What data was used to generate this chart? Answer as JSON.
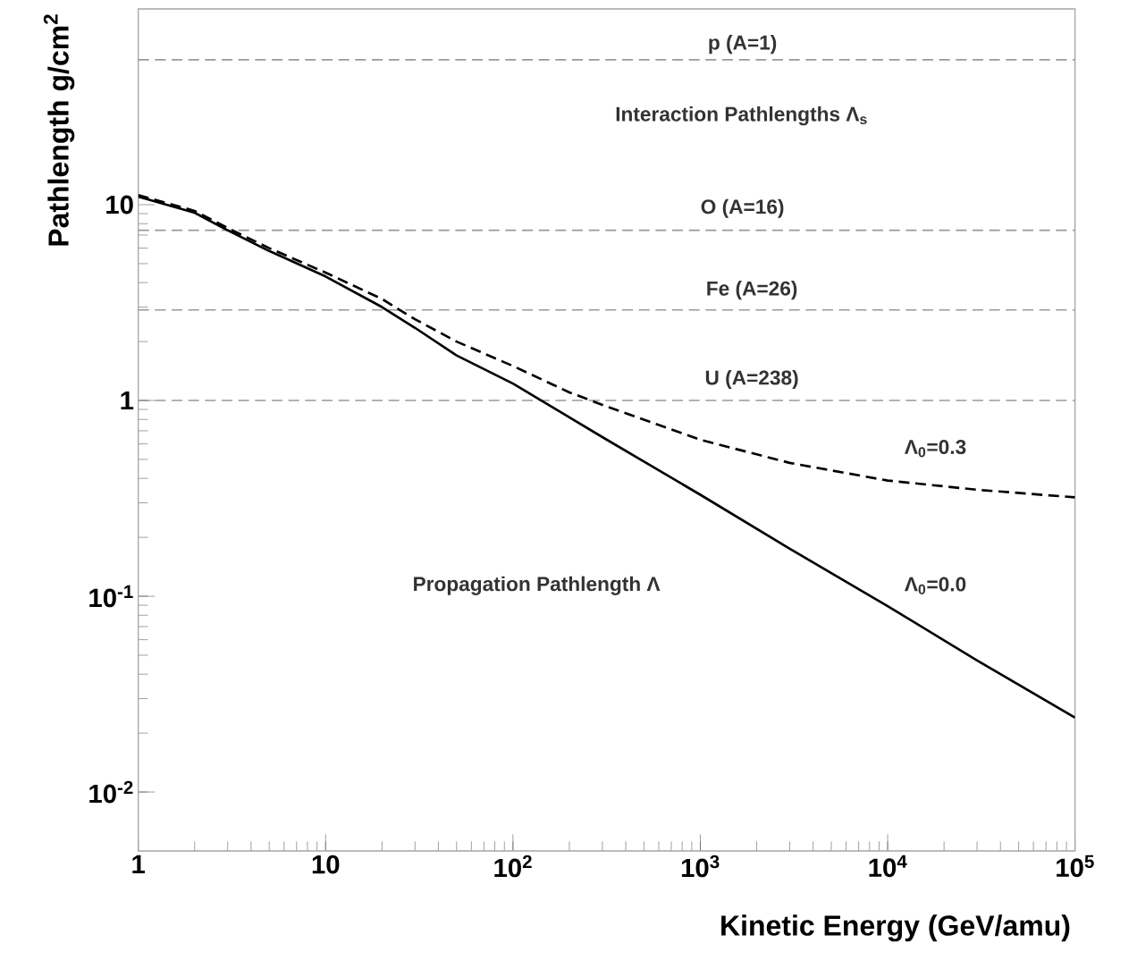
{
  "chart_data": {
    "type": "line",
    "xlabel": "Kinetic Energy (GeV/amu)",
    "ylabel": "Pathlength g/cm$^{2}$",
    "log": "xy",
    "xlim": [
      1,
      100000
    ],
    "ylim": [
      0.005,
      100
    ],
    "xticks": [
      1,
      10,
      {
        "value": 100,
        "label": "10$^{2}$"
      },
      {
        "value": 1000,
        "label": "10$^{3}$"
      },
      {
        "value": 10000,
        "label": "10$^{4}$"
      },
      {
        "value": 100000,
        "label": "10$^{5}$"
      }
    ],
    "yticks": [
      {
        "value": 0.01,
        "label": "10$^{-2}$"
      },
      {
        "value": 0.1,
        "label": "10$^{-1}$"
      },
      1,
      10
    ],
    "x": [
      1,
      2,
      3,
      5,
      10,
      20,
      30,
      50,
      100,
      200,
      300,
      1000,
      3000,
      10000,
      30000,
      100000
    ],
    "series": [
      {
        "name": "Λ$_{0}$=0.3",
        "color": "#000000",
        "line_style": "dashed",
        "values": [
          11.2,
          9.3,
          7.6,
          6.0,
          4.5,
          3.3,
          2.6,
          2.0,
          1.5,
          1.1,
          0.95,
          0.63,
          0.48,
          0.39,
          0.35,
          0.32
        ]
      },
      {
        "name": "Λ$_{0}$=0.0",
        "color": "#000000",
        "line_style": "solid",
        "values": [
          11.0,
          9.1,
          7.4,
          5.8,
          4.3,
          3.0,
          2.35,
          1.7,
          1.22,
          0.82,
          0.65,
          0.33,
          0.175,
          0.089,
          0.047,
          0.024
        ]
      }
    ],
    "ref_lines": [
      {
        "axis": "y",
        "value": 55,
        "color": "#999999",
        "line_style": "dashed"
      },
      {
        "axis": "y",
        "value": 7.4,
        "color": "#999999",
        "line_style": "dashed"
      },
      {
        "axis": "y",
        "value": 2.9,
        "color": "#999999",
        "line_style": "dashed"
      },
      {
        "axis": "y",
        "value": 1.0,
        "color": "#999999",
        "line_style": "dashed"
      }
    ],
    "annotations": [
      "p  (A=1)",
      "Interaction Pathlengths Λ$_{s}$",
      "O  (A=16)",
      "Fe   (A=26)",
      "U   (A=238)",
      "Propagation Pathlength Λ"
    ],
    "marker": "none"
  }
}
